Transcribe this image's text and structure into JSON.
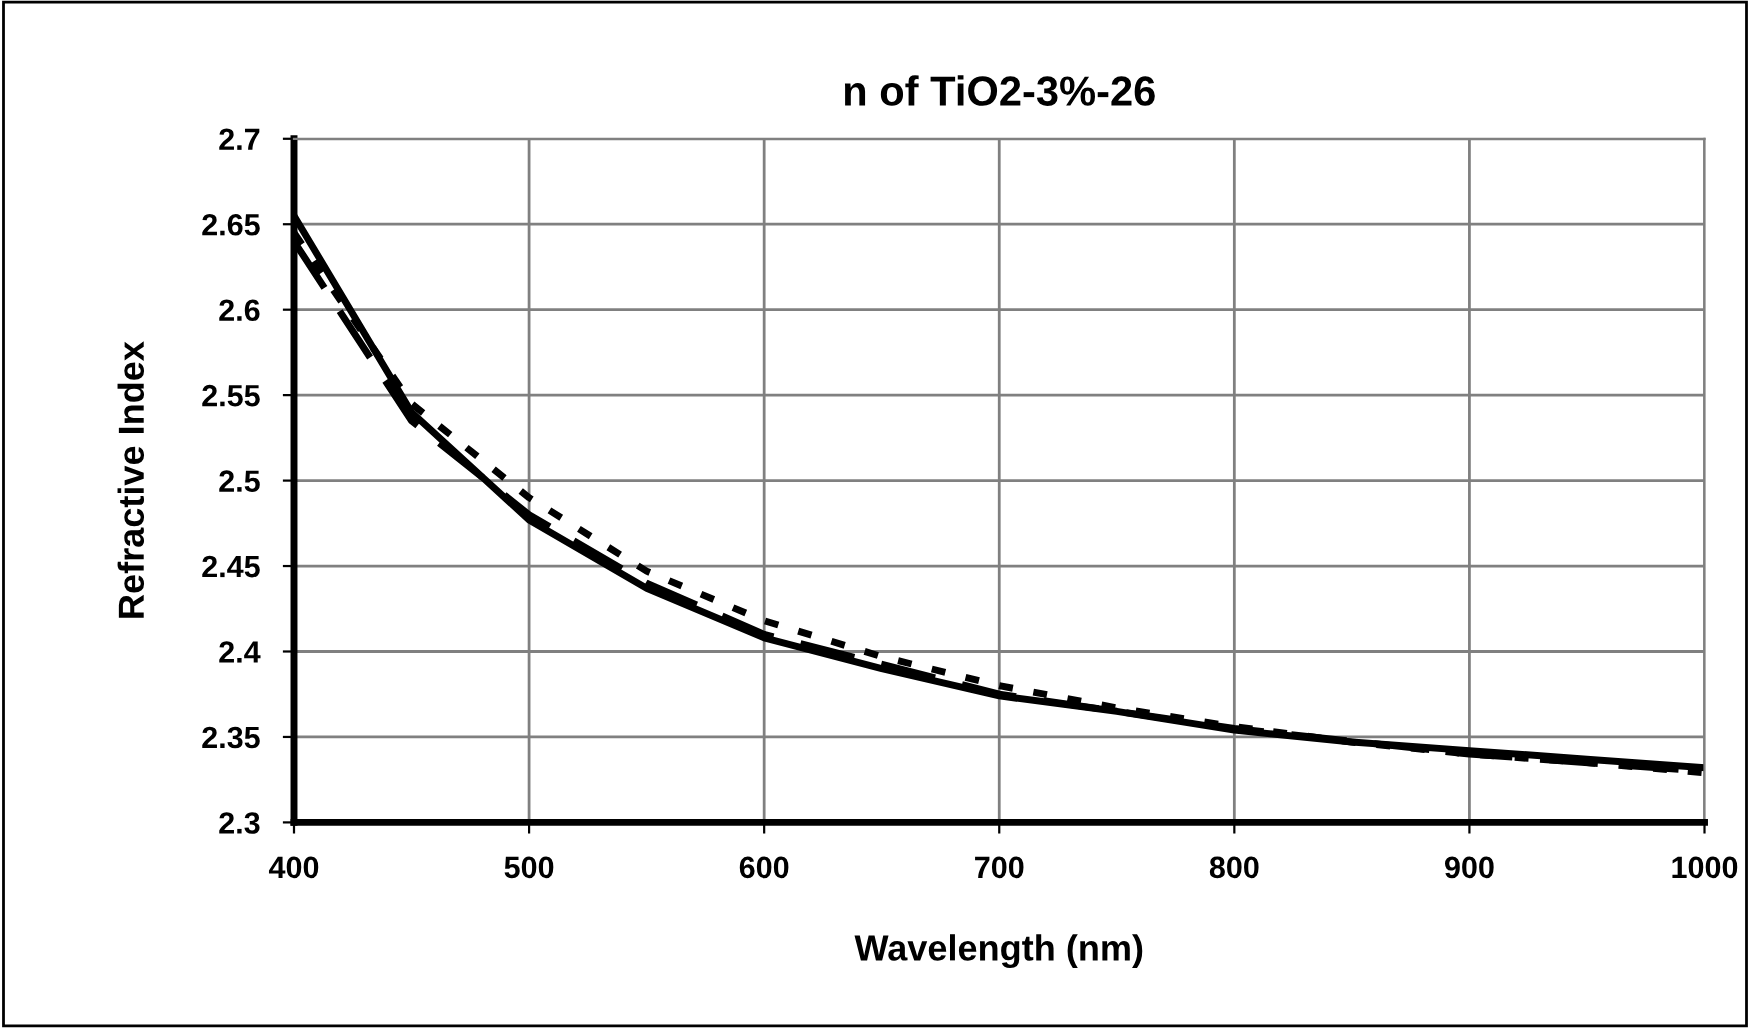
{
  "chart_data": {
    "type": "line",
    "title": "n of TiO2-3%-26",
    "xlabel": "Wavelength (nm)",
    "ylabel": "Refractive Index",
    "xlim": [
      400,
      1000
    ],
    "xticks": [
      400,
      500,
      600,
      700,
      800,
      900,
      1000
    ],
    "ylim": [
      2.3,
      2.7
    ],
    "yticks": [
      2.3,
      2.35,
      2.4,
      2.45,
      2.5,
      2.55,
      2.6,
      2.65,
      2.7
    ],
    "grid": true,
    "marker": "none",
    "series": [
      {
        "color": "#000000",
        "line_style": "solid",
        "x": [
          400,
          450,
          500,
          550,
          600,
          650,
          700,
          750,
          800,
          850,
          900,
          950,
          1000
        ],
        "values": [
          2.655,
          2.54,
          2.477,
          2.437,
          2.408,
          2.39,
          2.374,
          2.365,
          2.354,
          2.347,
          2.342,
          2.337,
          2.332
        ]
      },
      {
        "color": "#000000",
        "line_style": "dashed",
        "x": [
          400,
          450,
          500,
          550,
          600,
          700,
          800,
          900,
          1000
        ],
        "values": [
          2.64,
          2.535,
          2.48,
          2.44,
          2.41,
          2.375,
          2.355,
          2.34,
          2.33
        ]
      },
      {
        "color": "#000000",
        "line_style": "dotted",
        "x": [
          400,
          450,
          500,
          550,
          600,
          650,
          700,
          750,
          800,
          850,
          900,
          950,
          1000
        ],
        "values": [
          2.645,
          2.545,
          2.49,
          2.447,
          2.418,
          2.397,
          2.38,
          2.367,
          2.356,
          2.347,
          2.34,
          2.335,
          2.329
        ]
      }
    ]
  }
}
